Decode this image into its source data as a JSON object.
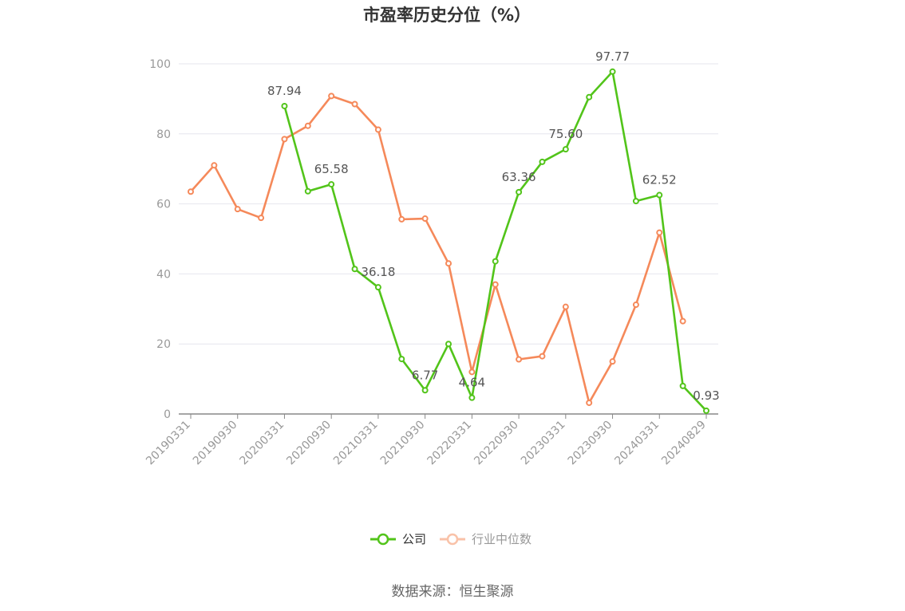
{
  "chart_data": {
    "type": "line",
    "title": "市盈率历史分位（%）",
    "ylim": [
      0,
      100
    ],
    "yticks": [
      "0",
      "20",
      "40",
      "60",
      "80",
      "100"
    ],
    "x_tick_labels": [
      "20190331",
      "20190930",
      "20200331",
      "20200930",
      "20210331",
      "20210930",
      "20220331",
      "20220930",
      "20230331",
      "20230930",
      "20240331",
      "20240829"
    ],
    "x": [
      "20190331",
      "20190630",
      "20190930",
      "20191231",
      "20200331",
      "20200630",
      "20200930",
      "20201231",
      "20210331",
      "20210630",
      "20210930",
      "20211231",
      "20220331",
      "20220630",
      "20220930",
      "20221231",
      "20230331",
      "20230630",
      "20230930",
      "20231231",
      "20240331",
      "20240630",
      "20240829"
    ],
    "series": [
      {
        "name": "公司",
        "color": "#52c41a",
        "values": [
          null,
          null,
          null,
          null,
          87.94,
          63.6,
          65.58,
          41.4,
          36.18,
          15.7,
          6.77,
          20.0,
          4.64,
          43.6,
          63.36,
          72.0,
          75.6,
          90.5,
          97.77,
          60.8,
          62.52,
          8.0,
          0.93
        ]
      },
      {
        "name": "行业中位数",
        "color": "#f5895a",
        "values": [
          63.5,
          71.0,
          58.5,
          56.0,
          78.5,
          82.3,
          90.8,
          88.5,
          81.2,
          55.6,
          55.8,
          43.0,
          12.0,
          37.0,
          15.6,
          16.5,
          30.6,
          3.2,
          15.0,
          31.2,
          51.8,
          26.5,
          null
        ]
      }
    ],
    "data_labels": [
      {
        "series": 0,
        "index": 4,
        "text": "87.94"
      },
      {
        "series": 0,
        "index": 6,
        "text": "65.58"
      },
      {
        "series": 0,
        "index": 8,
        "text": "36.18"
      },
      {
        "series": 0,
        "index": 10,
        "text": "6.77"
      },
      {
        "series": 0,
        "index": 12,
        "text": "4.64"
      },
      {
        "series": 0,
        "index": 14,
        "text": "63.36"
      },
      {
        "series": 0,
        "index": 16,
        "text": "75.60"
      },
      {
        "series": 0,
        "index": 18,
        "text": "97.77"
      },
      {
        "series": 0,
        "index": 20,
        "text": "62.52"
      },
      {
        "series": 0,
        "index": 22,
        "text": "0.93"
      }
    ],
    "legend": {
      "position": "bottom-center",
      "items": [
        {
          "label": "公司",
          "color": "#52c41a",
          "active": true
        },
        {
          "label": "行业中位数",
          "color": "#f5895a",
          "active": false
        }
      ]
    },
    "grid": true
  },
  "source_text": "数据来源：恒生聚源"
}
